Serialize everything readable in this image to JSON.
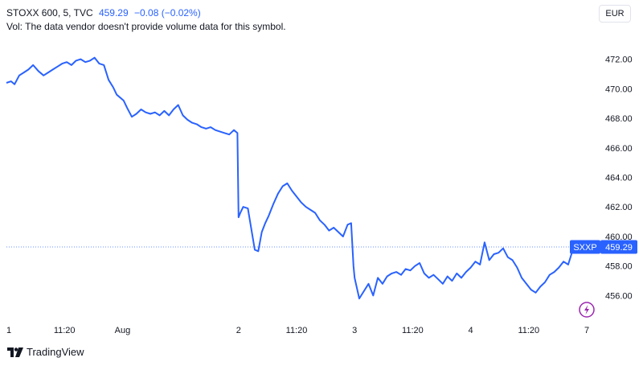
{
  "legend": {
    "symbol_line": "STOXX 600, 5, TVC",
    "last": "459.29",
    "change": "−0.08 (−0.02%)",
    "volume_note": "Vol: The data vendor doesn't provide volume data for this symbol."
  },
  "currency_button": "EUR",
  "price_tag": {
    "symbol": "SXXP",
    "value": "459.29",
    "color": "#2962ff"
  },
  "footer": {
    "brand": "TradingView"
  },
  "chart_data": {
    "type": "line",
    "line_color": "#2962ff",
    "y_ticks": [
      472,
      470,
      468,
      466,
      464,
      462,
      460,
      458,
      456
    ],
    "y_tick_labels": [
      "472.00",
      "470.00",
      "468.00",
      "466.00",
      "464.00",
      "462.00",
      "460.00",
      "458.00",
      "456.00"
    ],
    "ylim": [
      454.5,
      474.1
    ],
    "x_tick_labels": [
      "1",
      "11:20",
      "Aug",
      "2",
      "11:20",
      "3",
      "11:20",
      "4",
      "11:20",
      "7"
    ],
    "xlim": [
      0,
      100
    ],
    "x_ticks": [
      0,
      10,
      20,
      40,
      50,
      60,
      70,
      80,
      90,
      100
    ],
    "series": [
      {
        "x": [
          0,
          0.8,
          1.4,
          2.2,
          3,
          3.8,
          4.6,
          5.5,
          6.4,
          7.2,
          8,
          8.8,
          9.6,
          10.4,
          11.2,
          12,
          12.8,
          13.6,
          14.4,
          15.2,
          16,
          16.8,
          17.6,
          18.4,
          19,
          19.6,
          20.2,
          20.8,
          21.6,
          22.4,
          23.2,
          24,
          24.8,
          25.6,
          26.4,
          27.2,
          28,
          28.8,
          29.6,
          30.4,
          31.2,
          32,
          32.8,
          33.6,
          34.4,
          35.2,
          36,
          36.8,
          37.6,
          38.4,
          39.2,
          39.8,
          40,
          40.3,
          40.8,
          41.6,
          42.2,
          42.8,
          43.4,
          44,
          44.6,
          45.2,
          46,
          46.8,
          47.6,
          48.4,
          49.2,
          50,
          50.8,
          51.6,
          52.4,
          53.2,
          54,
          54.8,
          55.6,
          56.4,
          57.2,
          58,
          58.8,
          59.4,
          59.8,
          60,
          60.4,
          60.8,
          61.6,
          62.4,
          63.2,
          64,
          64.8,
          65.6,
          66.4,
          67.2,
          68,
          68.8,
          69.6,
          70.4,
          71.2,
          72,
          72.8,
          73.6,
          74.4,
          75.2,
          76,
          76.8,
          77.6,
          78.4,
          79.2,
          80,
          80.8,
          81.6,
          82.4,
          83.2,
          84,
          84.8,
          85.6,
          86.4,
          87.2,
          88,
          88.8,
          89.6,
          90.4,
          91.2,
          92,
          92.8,
          93.6,
          94.4,
          95.2,
          96,
          96.8,
          97.6,
          98.4
        ],
        "values": [
          470.4,
          470.5,
          470.3,
          470.9,
          471.1,
          471.3,
          471.6,
          471.2,
          470.9,
          471.1,
          471.3,
          471.5,
          471.7,
          471.8,
          471.6,
          471.9,
          472.0,
          471.8,
          471.9,
          472.1,
          471.7,
          471.6,
          470.6,
          470.1,
          469.6,
          469.4,
          469.2,
          468.7,
          468.1,
          468.3,
          468.6,
          468.4,
          468.3,
          468.4,
          468.2,
          468.5,
          468.2,
          468.6,
          468.9,
          468.2,
          467.9,
          467.7,
          467.6,
          467.4,
          467.3,
          467.4,
          467.2,
          467.1,
          467.0,
          466.9,
          467.2,
          467.0,
          461.3,
          461.6,
          462.0,
          461.9,
          460.5,
          459.1,
          459.0,
          460.3,
          460.9,
          461.4,
          462.2,
          462.9,
          463.4,
          463.6,
          463.1,
          462.7,
          462.3,
          462.0,
          461.8,
          461.6,
          461.1,
          460.8,
          460.4,
          460.6,
          460.3,
          460.0,
          460.8,
          460.9,
          458.0,
          457.2,
          456.5,
          455.8,
          456.3,
          456.8,
          456.0,
          457.2,
          456.8,
          457.3,
          457.5,
          457.6,
          457.4,
          457.8,
          457.7,
          458.0,
          458.2,
          457.5,
          457.2,
          457.4,
          457.1,
          456.8,
          457.3,
          457.0,
          457.5,
          457.2,
          457.6,
          457.9,
          458.3,
          458.1,
          459.6,
          458.4,
          458.8,
          458.9,
          459.2,
          458.6,
          458.4,
          457.9,
          457.2,
          456.8,
          456.4,
          456.2,
          456.6,
          456.9,
          457.4,
          457.6,
          457.9,
          458.3,
          458.1,
          459.1,
          459.3
        ],
        "last_value": 459.29
      }
    ]
  }
}
